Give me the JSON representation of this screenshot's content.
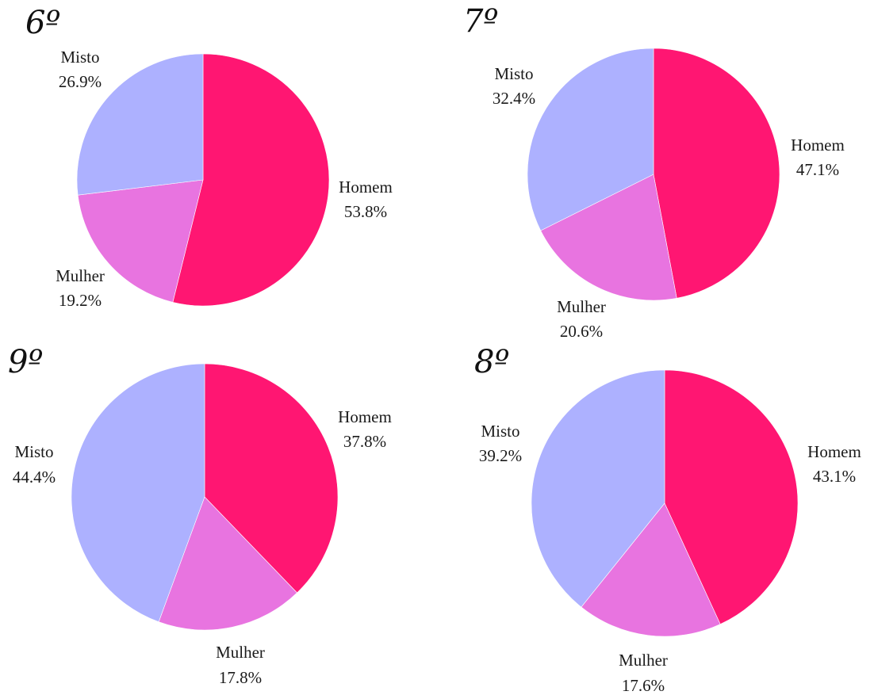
{
  "colors": {
    "Homem": "#ff1672",
    "Mulher": "#e874e0",
    "Misto": "#adb1ff"
  },
  "chart_data": [
    {
      "type": "pie",
      "title": "6º",
      "slices": [
        {
          "label": "Homem",
          "value": 53.8,
          "value_label": "53.8%"
        },
        {
          "label": "Mulher",
          "value": 19.2,
          "value_label": "19.2%"
        },
        {
          "label": "Misto",
          "value": 26.9,
          "value_label": "26.9%"
        }
      ]
    },
    {
      "type": "pie",
      "title": "7º",
      "slices": [
        {
          "label": "Homem",
          "value": 47.1,
          "value_label": "47.1%"
        },
        {
          "label": "Mulher",
          "value": 20.6,
          "value_label": "20.6%"
        },
        {
          "label": "Misto",
          "value": 32.4,
          "value_label": "32.4%"
        }
      ]
    },
    {
      "type": "pie",
      "title": "9º",
      "slices": [
        {
          "label": "Homem",
          "value": 37.8,
          "value_label": "37.8%"
        },
        {
          "label": "Mulher",
          "value": 17.8,
          "value_label": "17.8%"
        },
        {
          "label": "Misto",
          "value": 44.4,
          "value_label": "44.4%"
        }
      ]
    },
    {
      "type": "pie",
      "title": "8º",
      "slices": [
        {
          "label": "Homem",
          "value": 43.1,
          "value_label": "43.1%"
        },
        {
          "label": "Mulher",
          "value": 17.6,
          "value_label": "17.6%"
        },
        {
          "label": "Misto",
          "value": 39.2,
          "value_label": "39.2%"
        }
      ]
    }
  ]
}
